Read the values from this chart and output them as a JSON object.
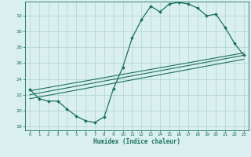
{
  "xlabel": "Humidex (Indice chaleur)",
  "bg_color": "#daf0ee",
  "grid_color": "#aed4ce",
  "line_color": "#1a7060",
  "xlim": [
    -0.5,
    23.5
  ],
  "ylim": [
    17.5,
    33.8
  ],
  "xticks": [
    0,
    1,
    2,
    3,
    4,
    5,
    6,
    7,
    8,
    9,
    10,
    11,
    12,
    13,
    14,
    15,
    16,
    17,
    18,
    19,
    20,
    21,
    22,
    23
  ],
  "yticks": [
    18,
    20,
    22,
    24,
    26,
    28,
    30,
    32
  ],
  "main_x": [
    0,
    1,
    2,
    3,
    4,
    5,
    6,
    7,
    8,
    9,
    10,
    11,
    12,
    13,
    14,
    15,
    16,
    17,
    18,
    19,
    20,
    21,
    22,
    23
  ],
  "main_y": [
    22.7,
    21.5,
    21.2,
    21.2,
    20.2,
    19.3,
    18.7,
    18.5,
    19.2,
    22.8,
    25.5,
    29.2,
    31.5,
    33.2,
    32.5,
    33.5,
    33.7,
    33.5,
    33.0,
    32.0,
    32.2,
    30.5,
    28.5,
    27.0
  ],
  "line1_x": [
    0,
    23
  ],
  "line1_y": [
    22.5,
    27.3
  ],
  "line2_x": [
    0,
    23
  ],
  "line2_y": [
    22.0,
    27.0
  ],
  "line3_x": [
    0,
    23
  ],
  "line3_y": [
    21.5,
    26.5
  ]
}
